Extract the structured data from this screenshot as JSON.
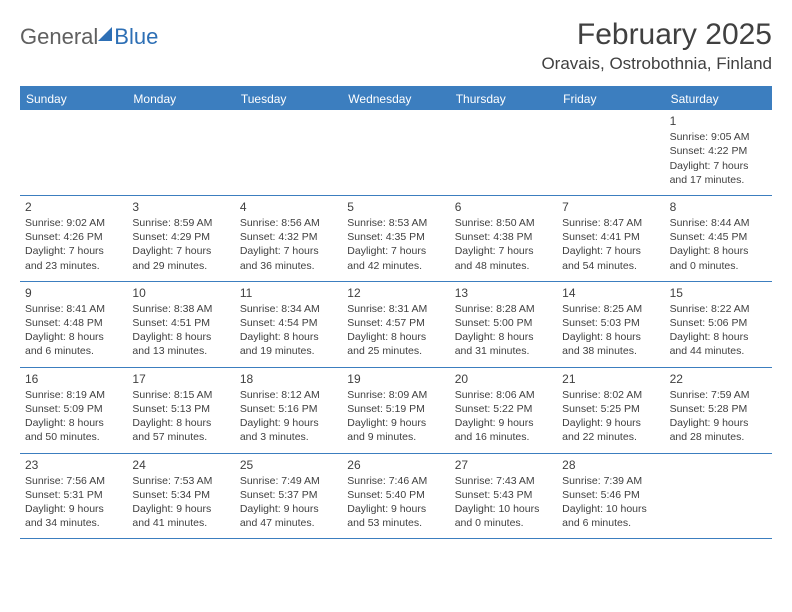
{
  "logo": {
    "general": "General",
    "blue": "Blue"
  },
  "title": "February 2025",
  "location": "Oravais, Ostrobothnia, Finland",
  "weekdays": [
    "Sunday",
    "Monday",
    "Tuesday",
    "Wednesday",
    "Thursday",
    "Friday",
    "Saturday"
  ],
  "colors": {
    "header_bg": "#3c7ebf",
    "border": "#3c7ebf",
    "text": "#404040",
    "blue_text": "#2d6fb5"
  },
  "weeks": [
    [
      null,
      null,
      null,
      null,
      null,
      null,
      {
        "n": "1",
        "sr": "Sunrise: 9:05 AM",
        "ss": "Sunset: 4:22 PM",
        "d1": "Daylight: 7 hours",
        "d2": "and 17 minutes."
      }
    ],
    [
      {
        "n": "2",
        "sr": "Sunrise: 9:02 AM",
        "ss": "Sunset: 4:26 PM",
        "d1": "Daylight: 7 hours",
        "d2": "and 23 minutes."
      },
      {
        "n": "3",
        "sr": "Sunrise: 8:59 AM",
        "ss": "Sunset: 4:29 PM",
        "d1": "Daylight: 7 hours",
        "d2": "and 29 minutes."
      },
      {
        "n": "4",
        "sr": "Sunrise: 8:56 AM",
        "ss": "Sunset: 4:32 PM",
        "d1": "Daylight: 7 hours",
        "d2": "and 36 minutes."
      },
      {
        "n": "5",
        "sr": "Sunrise: 8:53 AM",
        "ss": "Sunset: 4:35 PM",
        "d1": "Daylight: 7 hours",
        "d2": "and 42 minutes."
      },
      {
        "n": "6",
        "sr": "Sunrise: 8:50 AM",
        "ss": "Sunset: 4:38 PM",
        "d1": "Daylight: 7 hours",
        "d2": "and 48 minutes."
      },
      {
        "n": "7",
        "sr": "Sunrise: 8:47 AM",
        "ss": "Sunset: 4:41 PM",
        "d1": "Daylight: 7 hours",
        "d2": "and 54 minutes."
      },
      {
        "n": "8",
        "sr": "Sunrise: 8:44 AM",
        "ss": "Sunset: 4:45 PM",
        "d1": "Daylight: 8 hours",
        "d2": "and 0 minutes."
      }
    ],
    [
      {
        "n": "9",
        "sr": "Sunrise: 8:41 AM",
        "ss": "Sunset: 4:48 PM",
        "d1": "Daylight: 8 hours",
        "d2": "and 6 minutes."
      },
      {
        "n": "10",
        "sr": "Sunrise: 8:38 AM",
        "ss": "Sunset: 4:51 PM",
        "d1": "Daylight: 8 hours",
        "d2": "and 13 minutes."
      },
      {
        "n": "11",
        "sr": "Sunrise: 8:34 AM",
        "ss": "Sunset: 4:54 PM",
        "d1": "Daylight: 8 hours",
        "d2": "and 19 minutes."
      },
      {
        "n": "12",
        "sr": "Sunrise: 8:31 AM",
        "ss": "Sunset: 4:57 PM",
        "d1": "Daylight: 8 hours",
        "d2": "and 25 minutes."
      },
      {
        "n": "13",
        "sr": "Sunrise: 8:28 AM",
        "ss": "Sunset: 5:00 PM",
        "d1": "Daylight: 8 hours",
        "d2": "and 31 minutes."
      },
      {
        "n": "14",
        "sr": "Sunrise: 8:25 AM",
        "ss": "Sunset: 5:03 PM",
        "d1": "Daylight: 8 hours",
        "d2": "and 38 minutes."
      },
      {
        "n": "15",
        "sr": "Sunrise: 8:22 AM",
        "ss": "Sunset: 5:06 PM",
        "d1": "Daylight: 8 hours",
        "d2": "and 44 minutes."
      }
    ],
    [
      {
        "n": "16",
        "sr": "Sunrise: 8:19 AM",
        "ss": "Sunset: 5:09 PM",
        "d1": "Daylight: 8 hours",
        "d2": "and 50 minutes."
      },
      {
        "n": "17",
        "sr": "Sunrise: 8:15 AM",
        "ss": "Sunset: 5:13 PM",
        "d1": "Daylight: 8 hours",
        "d2": "and 57 minutes."
      },
      {
        "n": "18",
        "sr": "Sunrise: 8:12 AM",
        "ss": "Sunset: 5:16 PM",
        "d1": "Daylight: 9 hours",
        "d2": "and 3 minutes."
      },
      {
        "n": "19",
        "sr": "Sunrise: 8:09 AM",
        "ss": "Sunset: 5:19 PM",
        "d1": "Daylight: 9 hours",
        "d2": "and 9 minutes."
      },
      {
        "n": "20",
        "sr": "Sunrise: 8:06 AM",
        "ss": "Sunset: 5:22 PM",
        "d1": "Daylight: 9 hours",
        "d2": "and 16 minutes."
      },
      {
        "n": "21",
        "sr": "Sunrise: 8:02 AM",
        "ss": "Sunset: 5:25 PM",
        "d1": "Daylight: 9 hours",
        "d2": "and 22 minutes."
      },
      {
        "n": "22",
        "sr": "Sunrise: 7:59 AM",
        "ss": "Sunset: 5:28 PM",
        "d1": "Daylight: 9 hours",
        "d2": "and 28 minutes."
      }
    ],
    [
      {
        "n": "23",
        "sr": "Sunrise: 7:56 AM",
        "ss": "Sunset: 5:31 PM",
        "d1": "Daylight: 9 hours",
        "d2": "and 34 minutes."
      },
      {
        "n": "24",
        "sr": "Sunrise: 7:53 AM",
        "ss": "Sunset: 5:34 PM",
        "d1": "Daylight: 9 hours",
        "d2": "and 41 minutes."
      },
      {
        "n": "25",
        "sr": "Sunrise: 7:49 AM",
        "ss": "Sunset: 5:37 PM",
        "d1": "Daylight: 9 hours",
        "d2": "and 47 minutes."
      },
      {
        "n": "26",
        "sr": "Sunrise: 7:46 AM",
        "ss": "Sunset: 5:40 PM",
        "d1": "Daylight: 9 hours",
        "d2": "and 53 minutes."
      },
      {
        "n": "27",
        "sr": "Sunrise: 7:43 AM",
        "ss": "Sunset: 5:43 PM",
        "d1": "Daylight: 10 hours",
        "d2": "and 0 minutes."
      },
      {
        "n": "28",
        "sr": "Sunrise: 7:39 AM",
        "ss": "Sunset: 5:46 PM",
        "d1": "Daylight: 10 hours",
        "d2": "and 6 minutes."
      },
      null
    ]
  ]
}
